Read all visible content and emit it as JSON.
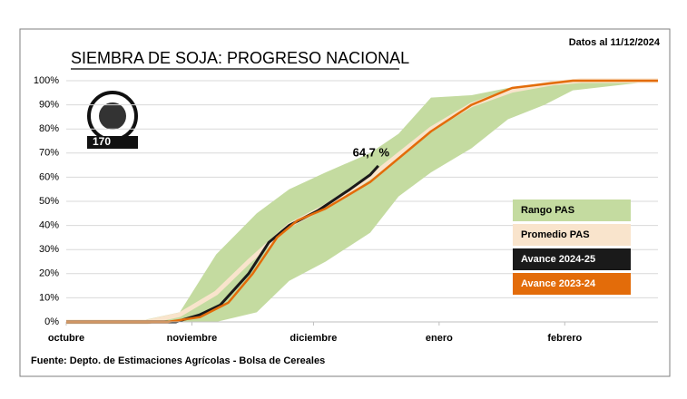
{
  "chart_data": {
    "type": "line",
    "title": "SIEMBRA DE SOJA: PROGRESO NACIONAL",
    "subtitle": "Datos al 11/12/2024",
    "source": "Fuente: Depto. de Estimaciones Agrícolas - Bolsa de Cereales",
    "logo_text": "170",
    "xlim": [
      0,
      146
    ],
    "xticks": [
      {
        "value": 0,
        "label": "octubre"
      },
      {
        "value": 31,
        "label": "noviembre"
      },
      {
        "value": 61,
        "label": "diciembre"
      },
      {
        "value": 92,
        "label": "enero"
      },
      {
        "value": 123,
        "label": "febrero"
      }
    ],
    "ylim": [
      0,
      100
    ],
    "yticks": [
      {
        "value": 0,
        "label": "0%"
      },
      {
        "value": 10,
        "label": "10%"
      },
      {
        "value": 20,
        "label": "20%"
      },
      {
        "value": 30,
        "label": "30%"
      },
      {
        "value": 40,
        "label": "40%"
      },
      {
        "value": 50,
        "label": "50%"
      },
      {
        "value": 60,
        "label": "60%"
      },
      {
        "value": 70,
        "label": "70%"
      },
      {
        "value": 80,
        "label": "80%"
      },
      {
        "value": 90,
        "label": "90%"
      },
      {
        "value": {
          "value": 100,
          "label": "100%"
        },
        "label": "100%"
      }
    ],
    "grid": true,
    "series": [
      {
        "name": "Rango PAS",
        "color": "#c4dba0",
        "kind": "band",
        "x": [
          0,
          17,
          28,
          37,
          47,
          55,
          64,
          75,
          82,
          90,
          100,
          109,
          118,
          125,
          146
        ],
        "upper": [
          0,
          0,
          4,
          28,
          45,
          55,
          62,
          70,
          78,
          93,
          94,
          97,
          99,
          100,
          100
        ],
        "lower": [
          0,
          0,
          0,
          0,
          4,
          17,
          25,
          37,
          52,
          62,
          72,
          84,
          90,
          96,
          100
        ]
      },
      {
        "name": "Promedio PAS",
        "color": "#f9e4cc",
        "kind": "line",
        "width": 5,
        "x": [
          0,
          20,
          28,
          37,
          45,
          55,
          64,
          75,
          90,
          100,
          110,
          120,
          127,
          146
        ],
        "values": [
          0,
          0,
          3,
          12,
          25,
          40,
          48,
          60,
          80,
          90,
          96,
          99,
          100,
          100
        ]
      },
      {
        "name": "Avance 2024-25",
        "color": "#1a1a1a",
        "kind": "line",
        "width": 3,
        "x": [
          0,
          27,
          33,
          38,
          45,
          50,
          55,
          62,
          70,
          75,
          77
        ],
        "values": [
          0,
          0,
          3,
          7,
          20,
          33,
          40,
          46,
          55,
          61,
          64.7
        ],
        "end_label": "64,7 %"
      },
      {
        "name": "Avance 2023-24",
        "color": "#e36c0a",
        "kind": "line",
        "width": 2.5,
        "x": [
          0,
          25,
          33,
          40,
          46,
          52,
          57,
          64,
          75,
          90,
          100,
          110,
          120,
          125,
          146
        ],
        "values": [
          0,
          0,
          2,
          8,
          20,
          35,
          42,
          47,
          58,
          79,
          90,
          97,
          99,
          100,
          100
        ]
      }
    ]
  }
}
